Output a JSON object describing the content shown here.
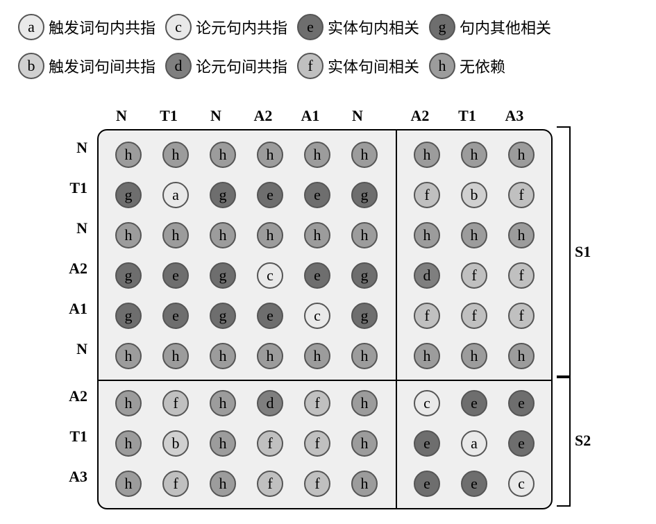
{
  "colors": {
    "a": "#e9e9e9",
    "b": "#d0d0d0",
    "c": "#e9e9e9",
    "d": "#7f7f7f",
    "e": "#6e6e6e",
    "f": "#c0c0c0",
    "g": "#6e6e6e",
    "h": "#9c9c9c",
    "border": "#555555",
    "grid_bg": "#efefef"
  },
  "legend": {
    "row1": [
      {
        "key": "a",
        "label": "触发词句内共指"
      },
      {
        "key": "c",
        "label": "论元句内共指"
      },
      {
        "key": "e",
        "label": "实体句内相关"
      },
      {
        "key": "g",
        "label": "句内其他相关"
      }
    ],
    "row2": [
      {
        "key": "b",
        "label": "触发词句间共指"
      },
      {
        "key": "d",
        "label": "论元句间共指"
      },
      {
        "key": "f",
        "label": "实体句间相关"
      },
      {
        "key": "h",
        "label": "无依赖"
      }
    ]
  },
  "col_headers": [
    "N",
    "T1",
    "N",
    "A2",
    "A1",
    "N",
    "A2",
    "T1",
    "A3"
  ],
  "row_headers": [
    "N",
    "T1",
    "N",
    "A2",
    "A1",
    "N",
    "A2",
    "T1",
    "A3"
  ],
  "col_split_after_index": 5,
  "row_split_after_index": 5,
  "side_labels": {
    "top": "S1",
    "bottom": "S2"
  },
  "matrix": [
    [
      "h",
      "h",
      "h",
      "h",
      "h",
      "h",
      "h",
      "h",
      "h"
    ],
    [
      "g",
      "a",
      "g",
      "e",
      "e",
      "g",
      "f",
      "b",
      "f"
    ],
    [
      "h",
      "h",
      "h",
      "h",
      "h",
      "h",
      "h",
      "h",
      "h"
    ],
    [
      "g",
      "e",
      "g",
      "c",
      "e",
      "g",
      "d",
      "f",
      "f"
    ],
    [
      "g",
      "e",
      "g",
      "e",
      "c",
      "g",
      "f",
      "f",
      "f"
    ],
    [
      "h",
      "h",
      "h",
      "h",
      "h",
      "h",
      "h",
      "h",
      "h"
    ],
    [
      "h",
      "f",
      "h",
      "d",
      "f",
      "h",
      "c",
      "e",
      "e"
    ],
    [
      "h",
      "b",
      "h",
      "f",
      "f",
      "h",
      "e",
      "a",
      "e"
    ],
    [
      "h",
      "f",
      "h",
      "f",
      "f",
      "h",
      "e",
      "e",
      "c"
    ]
  ]
}
